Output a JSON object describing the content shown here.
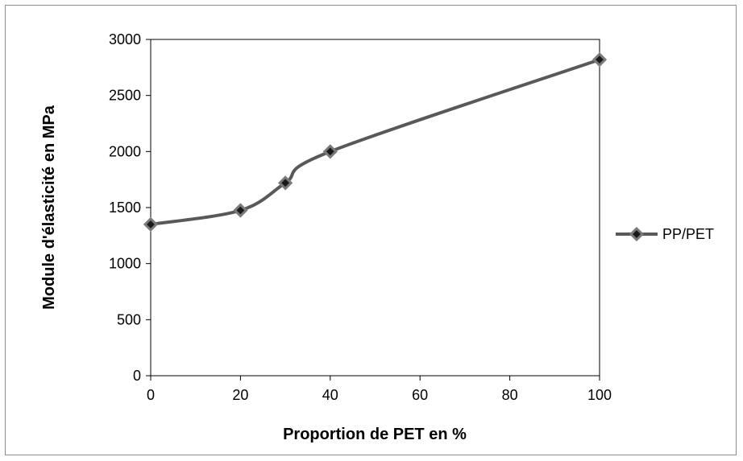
{
  "chart_data": {
    "type": "line",
    "title": "",
    "xlabel": "Proportion de PET en %",
    "ylabel": "Module d'élasticité en MPa",
    "xlim": [
      0,
      100
    ],
    "ylim": [
      0,
      3000
    ],
    "xticks": [
      0,
      20,
      40,
      60,
      80,
      100
    ],
    "yticks": [
      0,
      500,
      1000,
      1500,
      2000,
      2500,
      3000
    ],
    "grid": false,
    "legend_position": "right",
    "series": [
      {
        "name": "PP/PET",
        "color": "#595959",
        "marker": "diamond",
        "smooth": true,
        "x": [
          0,
          20,
          30,
          40,
          100
        ],
        "y": [
          1350,
          1475,
          1720,
          2000,
          2820
        ]
      }
    ]
  }
}
